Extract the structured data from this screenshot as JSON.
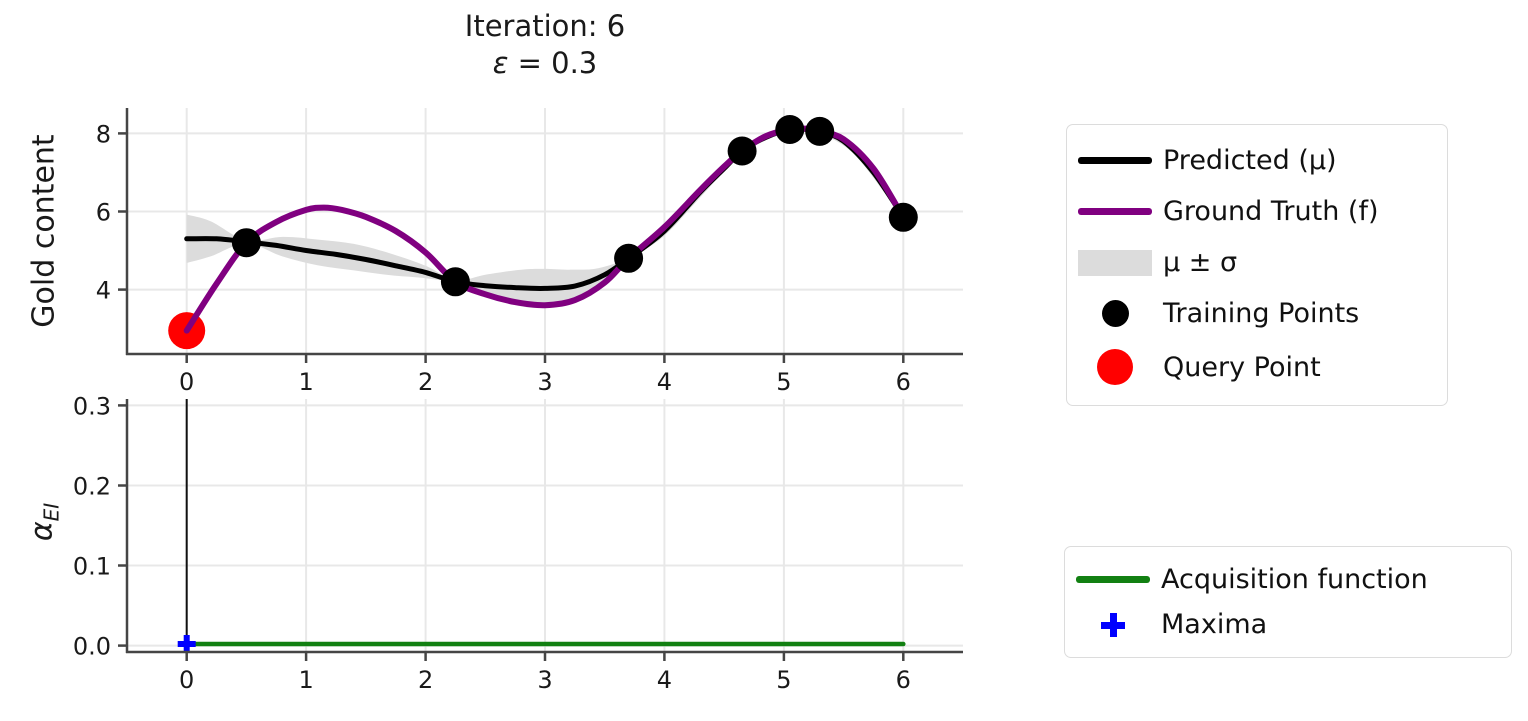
{
  "colors": {
    "predicted": "#000000",
    "ground_truth": "#800080",
    "uncertainty_band": "#dcdcdc",
    "training_points": "#000000",
    "query_point": "#ff0000",
    "acquisition": "#128012",
    "maxima": "#0000ff",
    "gridline": "#e8e8e8",
    "spine": "#454545",
    "text": "#1a1a1a"
  },
  "legend_top": {
    "items": [
      {
        "label": "Predicted (μ)",
        "swatch": "line",
        "color": "#000000"
      },
      {
        "label": "Ground Truth (f)",
        "swatch": "line",
        "color": "#800080"
      },
      {
        "label": "μ ± σ",
        "swatch": "patch",
        "color": "#dcdcdc"
      },
      {
        "label": "Training Points",
        "swatch": "dot",
        "color": "#000000"
      },
      {
        "label": "Query Point",
        "swatch": "dot-large",
        "color": "#ff0000"
      }
    ]
  },
  "legend_bottom": {
    "items": [
      {
        "label": "Acquisition function",
        "swatch": "line",
        "color": "#128012"
      },
      {
        "label": "Maxima",
        "swatch": "plus",
        "color": "#0000ff"
      }
    ]
  },
  "chart_data": [
    {
      "type": "line",
      "title_line1": "Iteration: 6",
      "title_epsilon": "ε",
      "title_rest": " = 0.3",
      "ylabel": "Gold content",
      "xlabel": "",
      "xlim": [
        -0.5,
        6.5
      ],
      "ylim": [
        2.35,
        8.65
      ],
      "xticks": [
        0,
        1,
        2,
        3,
        4,
        5,
        6
      ],
      "xticklabels": [
        "0",
        "1",
        "2",
        "3",
        "4",
        "5",
        "6"
      ],
      "yticks": [
        4,
        6,
        8
      ],
      "yticklabels": [
        "4",
        "6",
        "8"
      ],
      "grid": true,
      "series": [
        {
          "name": "μ ± σ",
          "type": "band",
          "color": "#dcdcdc",
          "x": [
            0,
            0.2,
            0.5,
            0.8,
            1.1,
            1.4,
            1.7,
            2.0,
            2.25,
            2.5,
            2.8,
            3.0,
            3.2,
            3.45,
            3.7,
            4.0,
            4.3,
            4.65,
            4.85,
            5.05,
            5.2,
            5.3,
            5.6,
            6.0
          ],
          "upper": [
            5.92,
            5.75,
            5.26,
            5.35,
            5.28,
            5.17,
            4.93,
            4.61,
            4.24,
            4.38,
            4.51,
            4.53,
            4.51,
            4.55,
            4.85,
            5.62,
            6.64,
            7.59,
            7.97,
            8.13,
            8.13,
            8.09,
            7.67,
            5.9
          ],
          "lower": [
            4.68,
            4.85,
            5.18,
            4.85,
            4.62,
            4.49,
            4.37,
            4.29,
            4.16,
            3.82,
            3.57,
            3.53,
            3.63,
            4.05,
            4.75,
            5.38,
            6.36,
            7.51,
            7.83,
            8.07,
            8.07,
            8.01,
            7.43,
            5.8
          ]
        },
        {
          "name": "Predicted (μ)",
          "type": "line",
          "color": "#000000",
          "width": 5,
          "points": [
            [
              0,
              5.3
            ],
            [
              0.25,
              5.3
            ],
            [
              0.5,
              5.22
            ],
            [
              0.75,
              5.13
            ],
            [
              1.0,
              5.0
            ],
            [
              1.25,
              4.9
            ],
            [
              1.5,
              4.77
            ],
            [
              1.75,
              4.61
            ],
            [
              2.0,
              4.44
            ],
            [
              2.25,
              4.2
            ],
            [
              2.5,
              4.1
            ],
            [
              2.75,
              4.05
            ],
            [
              3.0,
              4.03
            ],
            [
              3.25,
              4.09
            ],
            [
              3.5,
              4.38
            ],
            [
              3.7,
              4.8
            ],
            [
              4.0,
              5.5
            ],
            [
              4.3,
              6.5
            ],
            [
              4.5,
              7.1
            ],
            [
              4.65,
              7.55
            ],
            [
              4.85,
              7.9
            ],
            [
              5.05,
              8.1
            ],
            [
              5.2,
              8.1
            ],
            [
              5.3,
              8.05
            ],
            [
              5.5,
              7.8
            ],
            [
              5.75,
              7.0
            ],
            [
              6.0,
              5.85
            ]
          ]
        },
        {
          "name": "Query Point",
          "type": "scatter",
          "color": "#ff0000",
          "radius": 18.5,
          "points": [
            [
              0,
              2.95
            ]
          ]
        },
        {
          "name": "Ground Truth (f)",
          "type": "line",
          "color": "#800080",
          "width": 6,
          "points": [
            [
              0,
              2.95
            ],
            [
              0.25,
              4.15
            ],
            [
              0.5,
              5.2
            ],
            [
              0.75,
              5.73
            ],
            [
              1.0,
              6.04
            ],
            [
              1.15,
              6.1
            ],
            [
              1.3,
              6.04
            ],
            [
              1.5,
              5.86
            ],
            [
              1.75,
              5.5
            ],
            [
              2.0,
              4.95
            ],
            [
              2.25,
              4.2
            ],
            [
              2.5,
              3.88
            ],
            [
              2.75,
              3.68
            ],
            [
              3.0,
              3.6
            ],
            [
              3.25,
              3.73
            ],
            [
              3.5,
              4.18
            ],
            [
              3.7,
              4.8
            ],
            [
              4.0,
              5.6
            ],
            [
              4.3,
              6.55
            ],
            [
              4.5,
              7.15
            ],
            [
              4.65,
              7.55
            ],
            [
              4.85,
              7.93
            ],
            [
              5.05,
              8.1
            ],
            [
              5.2,
              8.12
            ],
            [
              5.3,
              8.05
            ],
            [
              5.5,
              7.85
            ],
            [
              5.75,
              7.1
            ],
            [
              6.0,
              5.85
            ]
          ]
        },
        {
          "name": "Training Points",
          "type": "scatter",
          "color": "#000000",
          "radius": 14.5,
          "points": [
            [
              0.5,
              5.2
            ],
            [
              2.25,
              4.2
            ],
            [
              3.7,
              4.8
            ],
            [
              4.65,
              7.55
            ],
            [
              5.05,
              8.1
            ],
            [
              5.3,
              8.05
            ],
            [
              6.0,
              5.85
            ]
          ]
        }
      ]
    },
    {
      "type": "line",
      "ylabel_symbol": "α",
      "ylabel_subscript": "EI",
      "xlim": [
        -0.5,
        6.5
      ],
      "ylim": [
        -0.008,
        0.308
      ],
      "xticks": [
        0,
        1,
        2,
        3,
        4,
        5,
        6
      ],
      "xticklabels": [
        "0",
        "1",
        "2",
        "3",
        "4",
        "5",
        "6"
      ],
      "yticks": [
        0.0,
        0.1,
        0.2,
        0.3
      ],
      "yticklabels": [
        "0.0",
        "0.1",
        "0.2",
        "0.3"
      ],
      "grid": true,
      "series": [
        {
          "name": "Query location",
          "type": "vline",
          "color": "#111111",
          "width": 2,
          "x": 0,
          "y_from": 0.002,
          "y_to": 0.308
        },
        {
          "name": "Acquisition function",
          "type": "line",
          "color": "#128012",
          "width": 4.5,
          "points": [
            [
              0,
              0.002
            ],
            [
              6,
              0.002
            ]
          ]
        },
        {
          "name": "Maxima",
          "type": "plus",
          "color": "#0000ff",
          "size": 9,
          "stroke": 6,
          "points": [
            [
              0,
              0.002
            ]
          ]
        }
      ]
    }
  ]
}
